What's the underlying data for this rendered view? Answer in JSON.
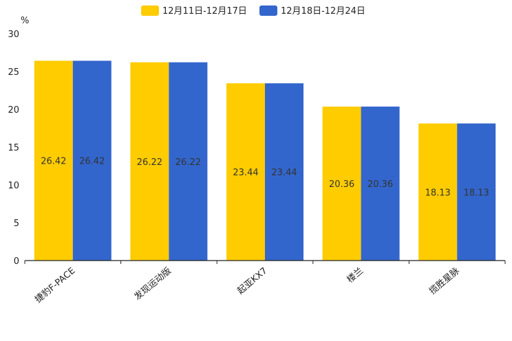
{
  "chart_data": {
    "type": "bar",
    "title": "",
    "xlabel": "",
    "ylabel": "%",
    "ylim": [
      0,
      30
    ],
    "yticks": [
      "0",
      "5",
      "10",
      "15",
      "20",
      "25",
      "30"
    ],
    "categories": [
      "捷豹F-PACE",
      "发现运动版",
      "起亚KX7",
      "楼兰",
      "揽胜星脉"
    ],
    "series": [
      {
        "name": "12月11日-12月17日",
        "color": "#FFCC00",
        "values": [
          26.42,
          26.22,
          23.44,
          20.36,
          18.13
        ],
        "labels": [
          "26.42",
          "26.22",
          "23.44",
          "20.36",
          "18.13"
        ]
      },
      {
        "name": "12月18日-12月24日",
        "color": "#3366CC",
        "values": [
          26.42,
          26.22,
          23.44,
          20.36,
          18.13
        ],
        "labels": [
          "26.42",
          "26.22",
          "23.44",
          "20.36",
          "18.13"
        ]
      }
    ],
    "legend": "top-center",
    "grid": false
  }
}
